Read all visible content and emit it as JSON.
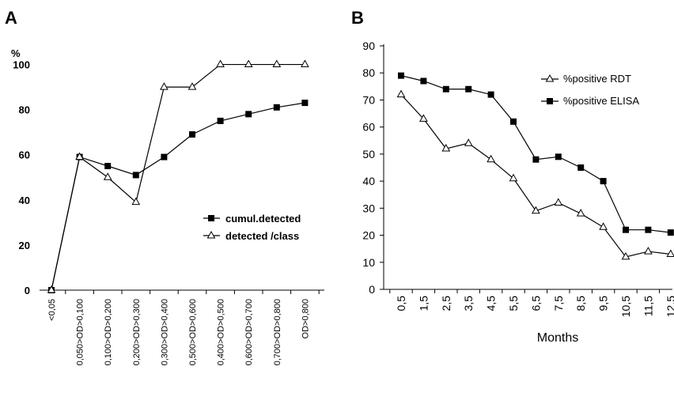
{
  "chart_data": [
    {
      "type": "line",
      "panel": "A",
      "ylabel": "%",
      "ylim": [
        0,
        110
      ],
      "yticks": [
        "0",
        "20",
        "40",
        "60",
        "80",
        "100"
      ],
      "categories": [
        "<0,05",
        "0,050>OD>0,100",
        "0,100>OD>0,200",
        "0,200>OD>0,300",
        "0,300>OD>0,400",
        "0,500>OD>0,600",
        "0,400>OD>0,500",
        "0,600>OD>0,700",
        "0,700>OD>0,800",
        "OD>0,800"
      ],
      "series": [
        {
          "name": "cumul.detected",
          "marker": "square",
          "values": [
            0,
            59,
            55,
            51,
            59,
            69,
            75,
            78,
            81,
            83
          ]
        },
        {
          "name": "detected /class",
          "marker": "triangle",
          "values": [
            0,
            59,
            50,
            39,
            90,
            90,
            100,
            100,
            100,
            100
          ]
        }
      ],
      "legend_position": "right"
    },
    {
      "type": "line",
      "panel": "B",
      "xlabel": "Months",
      "ylabel": "",
      "ylim": [
        0,
        90
      ],
      "yticks": [
        "0",
        "10",
        "20",
        "30",
        "40",
        "50",
        "60",
        "70",
        "80",
        "90"
      ],
      "categories": [
        "0,5",
        "1,5",
        "2,5",
        "3,5",
        "4,5",
        "5,5",
        "6,5",
        "7,5",
        "8,5",
        "9,5",
        "10,5",
        "11,5",
        "12,5"
      ],
      "series": [
        {
          "name": "%positive RDT",
          "marker": "triangle",
          "values": [
            72,
            63,
            52,
            54,
            48,
            41,
            29,
            32,
            28,
            23,
            12,
            14,
            13
          ]
        },
        {
          "name": "%positive ELISA",
          "marker": "square",
          "values": [
            79,
            77,
            74,
            74,
            72,
            62,
            48,
            49,
            45,
            40,
            22,
            22,
            21
          ]
        }
      ],
      "legend_position": "top-right"
    }
  ]
}
